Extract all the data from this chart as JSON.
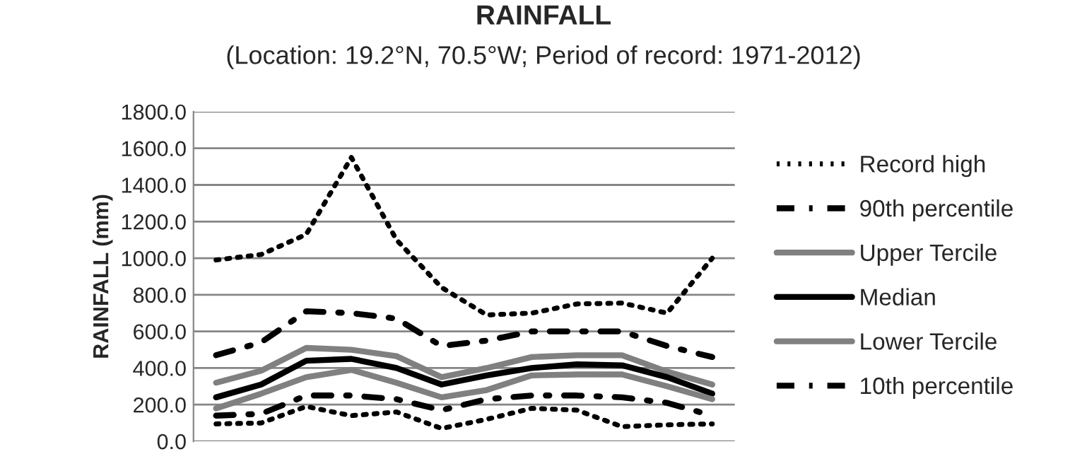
{
  "chart_data": {
    "type": "line",
    "title": "RAINFALL",
    "subtitle": "(Location: 19.2°N, 70.5°W; Period of record: 1971-2012)",
    "ylabel": "RAINFALL (mm)",
    "categories": [
      null,
      null,
      null,
      null,
      null,
      null,
      null,
      null,
      null,
      null,
      null,
      null
    ],
    "series": [
      {
        "name": "Record high",
        "color": "#000000",
        "line_style": "dotted",
        "values": [
          990,
          1020,
          1130,
          1550,
          1100,
          840,
          690,
          700,
          750,
          755,
          700,
          1000
        ]
      },
      {
        "name": "90th percentile",
        "color": "#000000",
        "line_style": "dashdot",
        "values": [
          470,
          540,
          710,
          700,
          670,
          520,
          550,
          600,
          600,
          600,
          520,
          460
        ]
      },
      {
        "name": "Upper Tercile",
        "color": "#808080",
        "line_style": "solid",
        "values": [
          320,
          385,
          510,
          500,
          465,
          350,
          400,
          460,
          470,
          470,
          380,
          310
        ]
      },
      {
        "name": "Median",
        "color": "#000000",
        "line_style": "solid",
        "values": [
          240,
          310,
          440,
          450,
          400,
          310,
          360,
          400,
          420,
          415,
          350,
          260
        ]
      },
      {
        "name": "Lower Tercile",
        "color": "#808080",
        "line_style": "solid",
        "values": [
          180,
          260,
          350,
          390,
          320,
          240,
          280,
          360,
          365,
          365,
          300,
          230
        ]
      },
      {
        "name": "10th percentile",
        "color": "#000000",
        "line_style": "dashdot",
        "values": [
          140,
          150,
          250,
          250,
          230,
          170,
          230,
          250,
          250,
          240,
          210,
          140
        ]
      },
      {
        "color": "#000000",
        "line_style": "dotted",
        "values": [
          95,
          100,
          190,
          140,
          160,
          70,
          120,
          180,
          170,
          80,
          90,
          95
        ]
      }
    ],
    "ylim": [
      0,
      1800
    ],
    "yticks": [
      {
        "value": 0,
        "label": "0.0"
      },
      {
        "value": 200,
        "label": "200.0"
      },
      {
        "value": 400,
        "label": "400.0"
      },
      {
        "value": 600,
        "label": "600.0"
      },
      {
        "value": 800,
        "label": "800.0"
      },
      {
        "value": 1000,
        "label": "1000.0"
      },
      {
        "value": 1200,
        "label": "1200.0"
      },
      {
        "value": 1400,
        "label": "1400.0"
      },
      {
        "value": 1600,
        "label": "1600.0"
      },
      {
        "value": 1800,
        "label": "1800.0"
      }
    ],
    "grid": "y",
    "legend": "right",
    "tick_labels": "y"
  }
}
